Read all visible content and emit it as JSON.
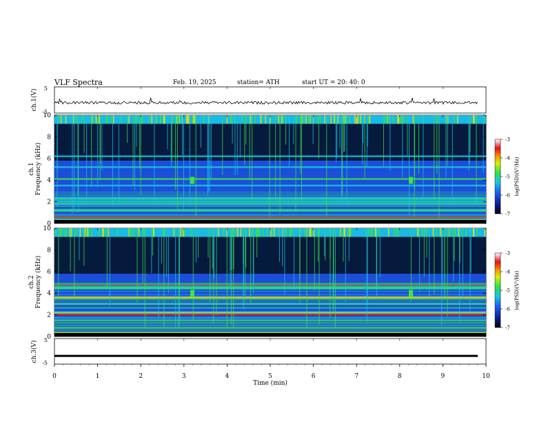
{
  "header": {
    "title": "VLF  Spectra",
    "date": "Feb. 19, 2025",
    "station": "station= ATH",
    "start": "start  UT  =   20: 40: 0"
  },
  "chart_data": [
    {
      "type": "line",
      "panel": "ch1-waveform",
      "ylabel": "ch.1(V)",
      "ylim": [
        -5,
        5
      ],
      "yticks": [
        "5",
        "-5"
      ],
      "xlim": [
        0,
        10
      ],
      "series": [
        {
          "values_approx": "noisy trace near 0 V with occasional spikes"
        }
      ]
    },
    {
      "type": "heatmap",
      "panel": "ch1-spectrogram",
      "ylabel": "ch.1\nFrequency (kHz)",
      "ylim": [
        0,
        10
      ],
      "yticks": [
        "0",
        "2",
        "4",
        "6",
        "8",
        "10"
      ],
      "xlim": [
        0,
        10
      ],
      "colorbar": {
        "label": "log(PSD)(V²/Hz)",
        "range": [
          -7,
          -3
        ],
        "ticks": [
          "-3",
          "-4",
          "-5",
          "-6",
          "-7"
        ]
      }
    },
    {
      "type": "heatmap",
      "panel": "ch2-spectrogram",
      "ylabel": "ch.2\nFrequency (kHz)",
      "ylim": [
        0,
        10
      ],
      "yticks": [
        "0",
        "2",
        "4",
        "6",
        "8",
        "10"
      ],
      "xlim": [
        0,
        10
      ],
      "colorbar": {
        "label": "log(PSD)(V²/Hz)",
        "range": [
          -7,
          -3
        ],
        "ticks": [
          "-3",
          "-4",
          "-5",
          "-6",
          "-7"
        ]
      }
    },
    {
      "type": "line",
      "panel": "ch3-waveform",
      "ylabel": "ch.3(V)",
      "ylim": [
        -5,
        5
      ],
      "yticks": [
        "5",
        "-5"
      ],
      "xlim": [
        0,
        10
      ],
      "series": [
        {
          "values_approx": "flat line near -2 V"
        }
      ]
    }
  ],
  "xaxis": {
    "label": "Time  (min)",
    "ticks": [
      "0",
      "1",
      "2",
      "3",
      "4",
      "5",
      "6",
      "7",
      "8",
      "9",
      "10"
    ]
  },
  "colors": {
    "background": "#ffffff",
    "trace": "#000000",
    "spec_deep": "#061a3d",
    "spec_blue": "#1b4fd8",
    "spec_cyan": "#19c5e6",
    "spec_green": "#3ee24a",
    "spec_yellow": "#ffe100",
    "spec_red": "#e4101a"
  }
}
